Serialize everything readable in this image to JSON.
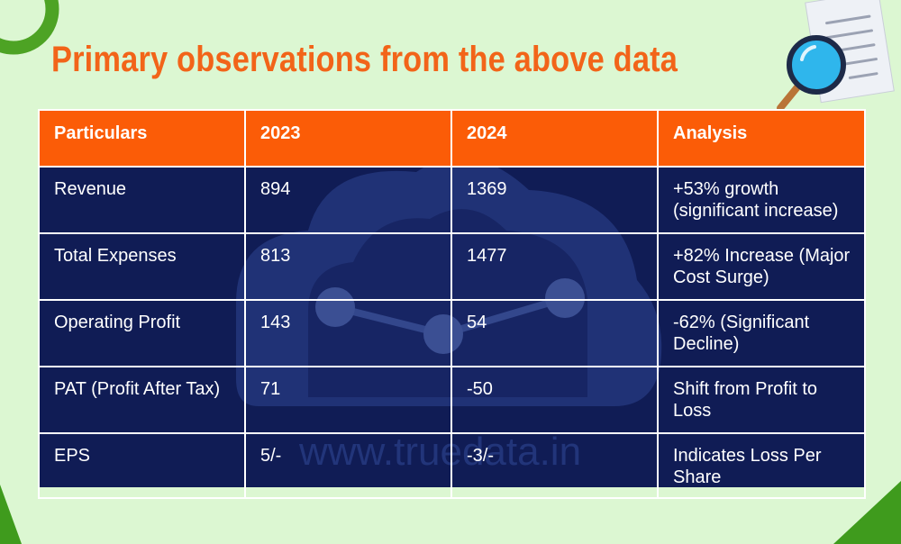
{
  "title": "Primary observations from the above data",
  "table": {
    "headers": [
      "Particulars",
      "2023",
      "2024",
      "Analysis"
    ],
    "rows": [
      [
        "Revenue",
        "894",
        "1369",
        "+53% growth (significant increase)"
      ],
      [
        "Total Expenses",
        "813",
        "1477",
        "+82% Increase (Major Cost Surge)"
      ],
      [
        "Operating Profit",
        "143",
        "54",
        "-62% (Significant Decline)"
      ],
      [
        "PAT (Profit After Tax)",
        "71",
        "-50",
        "Shift from Profit to Loss"
      ],
      [
        "EPS",
        "5/-",
        "-3/-",
        "Indicates Loss Per Share"
      ]
    ]
  },
  "watermark": "www.truedata.in",
  "colors": {
    "background": "#dcf7d2",
    "title": "#f26419",
    "header": "#fb5c07",
    "table_body": "#101c55",
    "accent_green": "#3f9b1d"
  },
  "icons": {
    "document": "document-icon",
    "magnifier": "magnifier-icon",
    "ring": "ring-decoration"
  }
}
